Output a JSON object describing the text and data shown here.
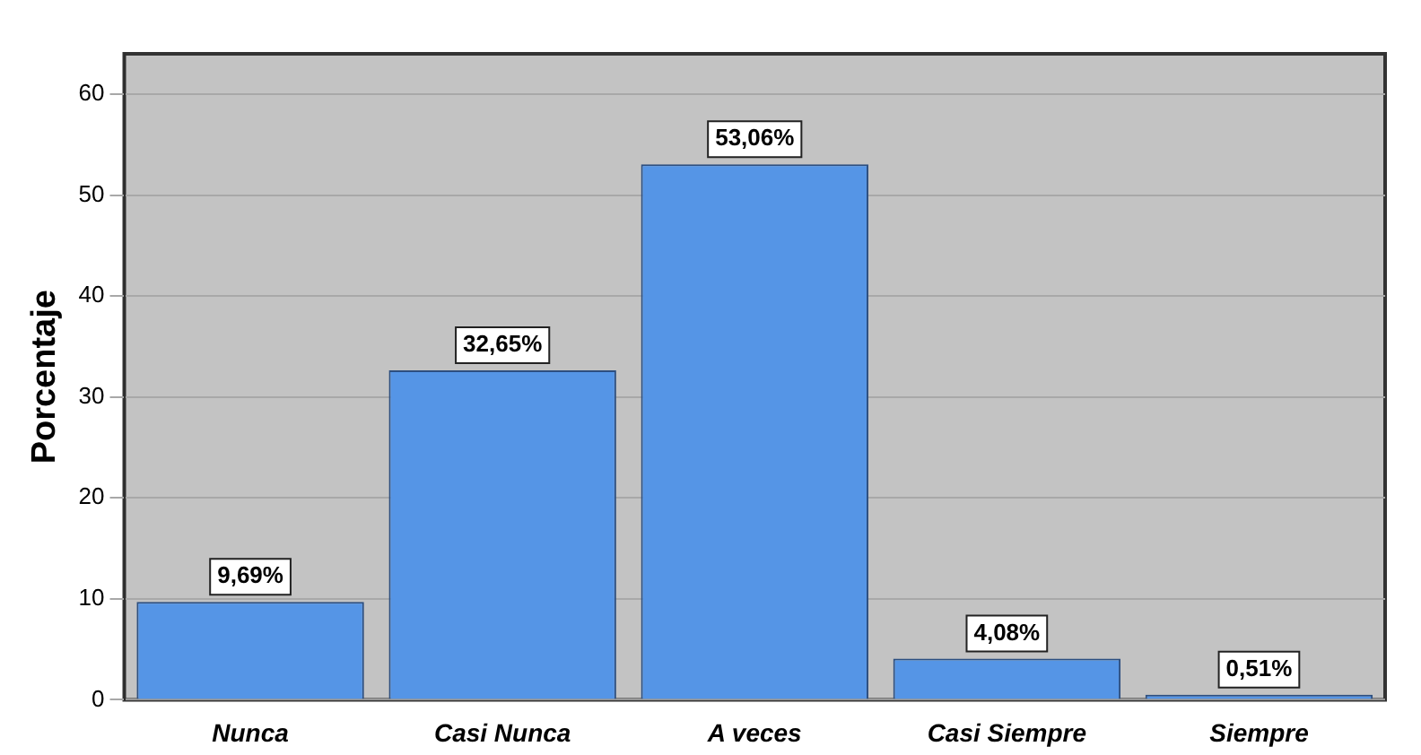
{
  "chart_data": {
    "type": "bar",
    "ylabel": "Porcentaje",
    "categories": [
      "Nunca",
      "Casi Nunca",
      "A veces",
      "Casi Siempre",
      "Siempre"
    ],
    "values": [
      9.69,
      32.65,
      53.06,
      4.08,
      0.51
    ],
    "value_labels": [
      "9,69%",
      "32,65%",
      "53,06%",
      "4,08%",
      "0,51%"
    ],
    "color": "#5595e6",
    "ylim": [
      0,
      64
    ],
    "yticks": [
      0,
      10,
      20,
      30,
      40,
      50,
      60
    ],
    "grid": "y",
    "legend": false
  }
}
